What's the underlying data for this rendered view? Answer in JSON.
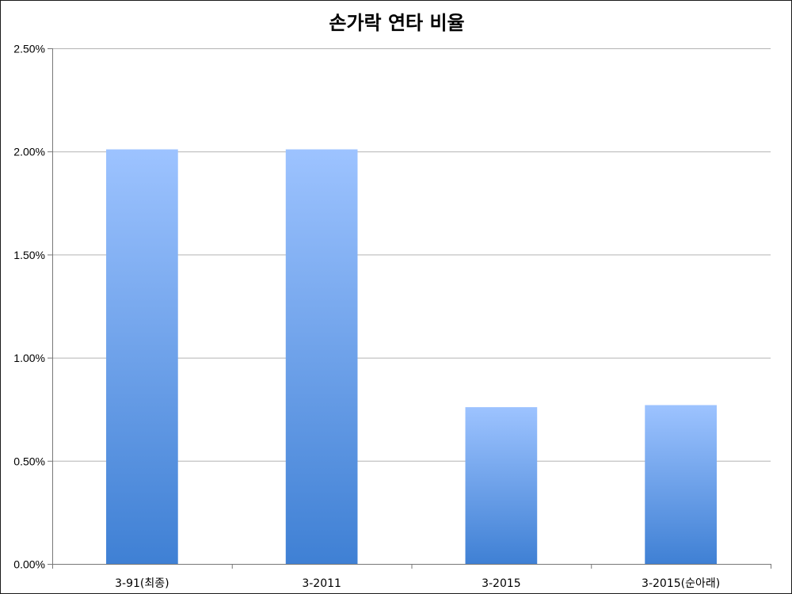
{
  "chart_data": {
    "type": "bar",
    "title": "손가락 연타 비율",
    "xlabel": "",
    "ylabel": "",
    "categories": [
      "3-91(최종)",
      "3-2011",
      "3-2015",
      "3-2015(순아래)"
    ],
    "values": [
      2.01,
      2.01,
      0.76,
      0.77
    ],
    "ylim": [
      0,
      2.5
    ],
    "yticks": [
      "0.00%",
      "0.50%",
      "1.00%",
      "1.50%",
      "2.00%",
      "2.50%"
    ],
    "ytick_values": [
      0,
      0.5,
      1.0,
      1.5,
      2.0,
      2.5
    ],
    "grid": true,
    "legend": "none",
    "bar_color_top": "#9dc3ff",
    "bar_color_bottom": "#3f80d4"
  }
}
